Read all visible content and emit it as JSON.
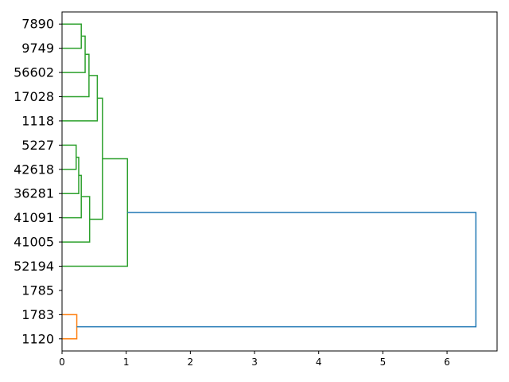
{
  "chart_data": {
    "type": "dendrogram",
    "orientation": "left",
    "xlim": [
      0,
      6.78
    ],
    "x_ticks": [
      0,
      1,
      2,
      3,
      4,
      5,
      6
    ],
    "leaves": [
      "7890",
      "9749",
      "56602",
      "17028",
      "1118",
      "5227",
      "42618",
      "36281",
      "41091",
      "41005",
      "52194",
      "1785",
      "1783",
      "1120"
    ],
    "colors": {
      "cluster_a": "#2ca02c",
      "cluster_b": "#ff7f0e",
      "root": "#1f77b4"
    },
    "links": [
      {
        "from_pos": 0,
        "to_pos": 1,
        "from_height": 0,
        "to_height": 0,
        "height": 0.3,
        "color": "cluster_a"
      },
      {
        "from_pos": 0.5,
        "to_pos": 2,
        "from_height": 0.3,
        "to_height": 0,
        "height": 0.36,
        "color": "cluster_a"
      },
      {
        "from_pos": 1.25,
        "to_pos": 3,
        "from_height": 0.36,
        "to_height": 0,
        "height": 0.42,
        "color": "cluster_a"
      },
      {
        "from_pos": 2.125,
        "to_pos": 4,
        "from_height": 0.42,
        "to_height": 0,
        "height": 0.55,
        "color": "cluster_a"
      },
      {
        "from_pos": 5,
        "to_pos": 6,
        "from_height": 0,
        "to_height": 0,
        "height": 0.22,
        "color": "cluster_a"
      },
      {
        "from_pos": 5.5,
        "to_pos": 7,
        "from_height": 0.22,
        "to_height": 0,
        "height": 0.26,
        "color": "cluster_a"
      },
      {
        "from_pos": 6.25,
        "to_pos": 8,
        "from_height": 0.26,
        "to_height": 0,
        "height": 0.3,
        "color": "cluster_a"
      },
      {
        "from_pos": 7.125,
        "to_pos": 9,
        "from_height": 0.3,
        "to_height": 0,
        "height": 0.43,
        "color": "cluster_a"
      },
      {
        "from_pos": 3.0625,
        "to_pos": 8.0625,
        "from_height": 0.55,
        "to_height": 0.43,
        "height": 0.63,
        "color": "cluster_a"
      },
      {
        "from_pos": 5.5625,
        "to_pos": 10,
        "from_height": 0.63,
        "to_height": 0,
        "height": 1.02,
        "color": "cluster_a"
      },
      {
        "from_pos": 12,
        "to_pos": 13,
        "from_height": 0,
        "to_height": 0,
        "height": 0.23,
        "color": "cluster_b"
      },
      {
        "from_pos": 7.78,
        "to_pos": 12.5,
        "from_height": 1.02,
        "to_height": 0.23,
        "height": 6.45,
        "color": "root"
      }
    ]
  }
}
